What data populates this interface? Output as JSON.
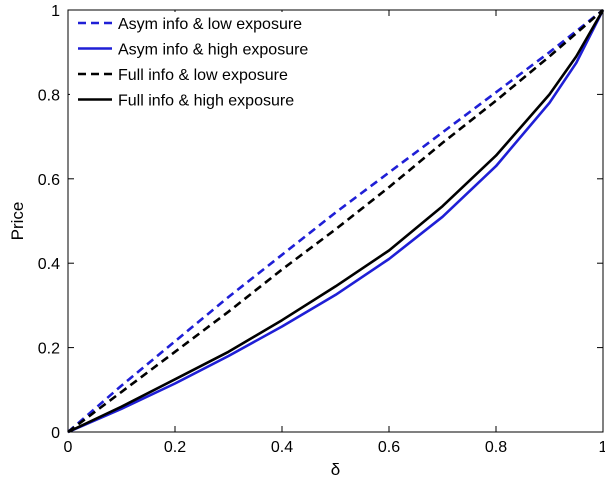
{
  "chart_data": {
    "type": "line",
    "title": "",
    "xlabel": "δ",
    "ylabel": "Price",
    "xlim": [
      0,
      1
    ],
    "ylim": [
      0,
      1
    ],
    "xticks": [
      "0",
      "0.2",
      "0.4",
      "0.6",
      "0.8",
      "1"
    ],
    "yticks": [
      "0",
      "0.2",
      "0.4",
      "0.6",
      "0.8",
      "1"
    ],
    "grid": false,
    "legend_position": "top-left",
    "x": [
      0,
      0.1,
      0.2,
      0.3,
      0.4,
      0.5,
      0.6,
      0.7,
      0.8,
      0.9,
      0.95,
      1
    ],
    "series": [
      {
        "name": "Asym info & low exposure",
        "color": "#1f1fd6",
        "dash": "dashed",
        "values": [
          0,
          0.11,
          0.215,
          0.32,
          0.42,
          0.52,
          0.615,
          0.71,
          0.805,
          0.9,
          0.95,
          1
        ]
      },
      {
        "name": "Asym info & high exposure",
        "color": "#1f1fd6",
        "dash": "solid",
        "values": [
          0,
          0.055,
          0.115,
          0.18,
          0.25,
          0.325,
          0.41,
          0.51,
          0.63,
          0.78,
          0.875,
          1
        ]
      },
      {
        "name": "Full info & low exposure",
        "color": "#000000",
        "dash": "dashed",
        "values": [
          0,
          0.095,
          0.19,
          0.285,
          0.385,
          0.48,
          0.58,
          0.685,
          0.785,
          0.89,
          0.945,
          1
        ]
      },
      {
        "name": "Full info & high exposure",
        "color": "#000000",
        "dash": "solid",
        "values": [
          0,
          0.06,
          0.125,
          0.19,
          0.265,
          0.345,
          0.43,
          0.535,
          0.655,
          0.8,
          0.89,
          1
        ]
      }
    ]
  }
}
